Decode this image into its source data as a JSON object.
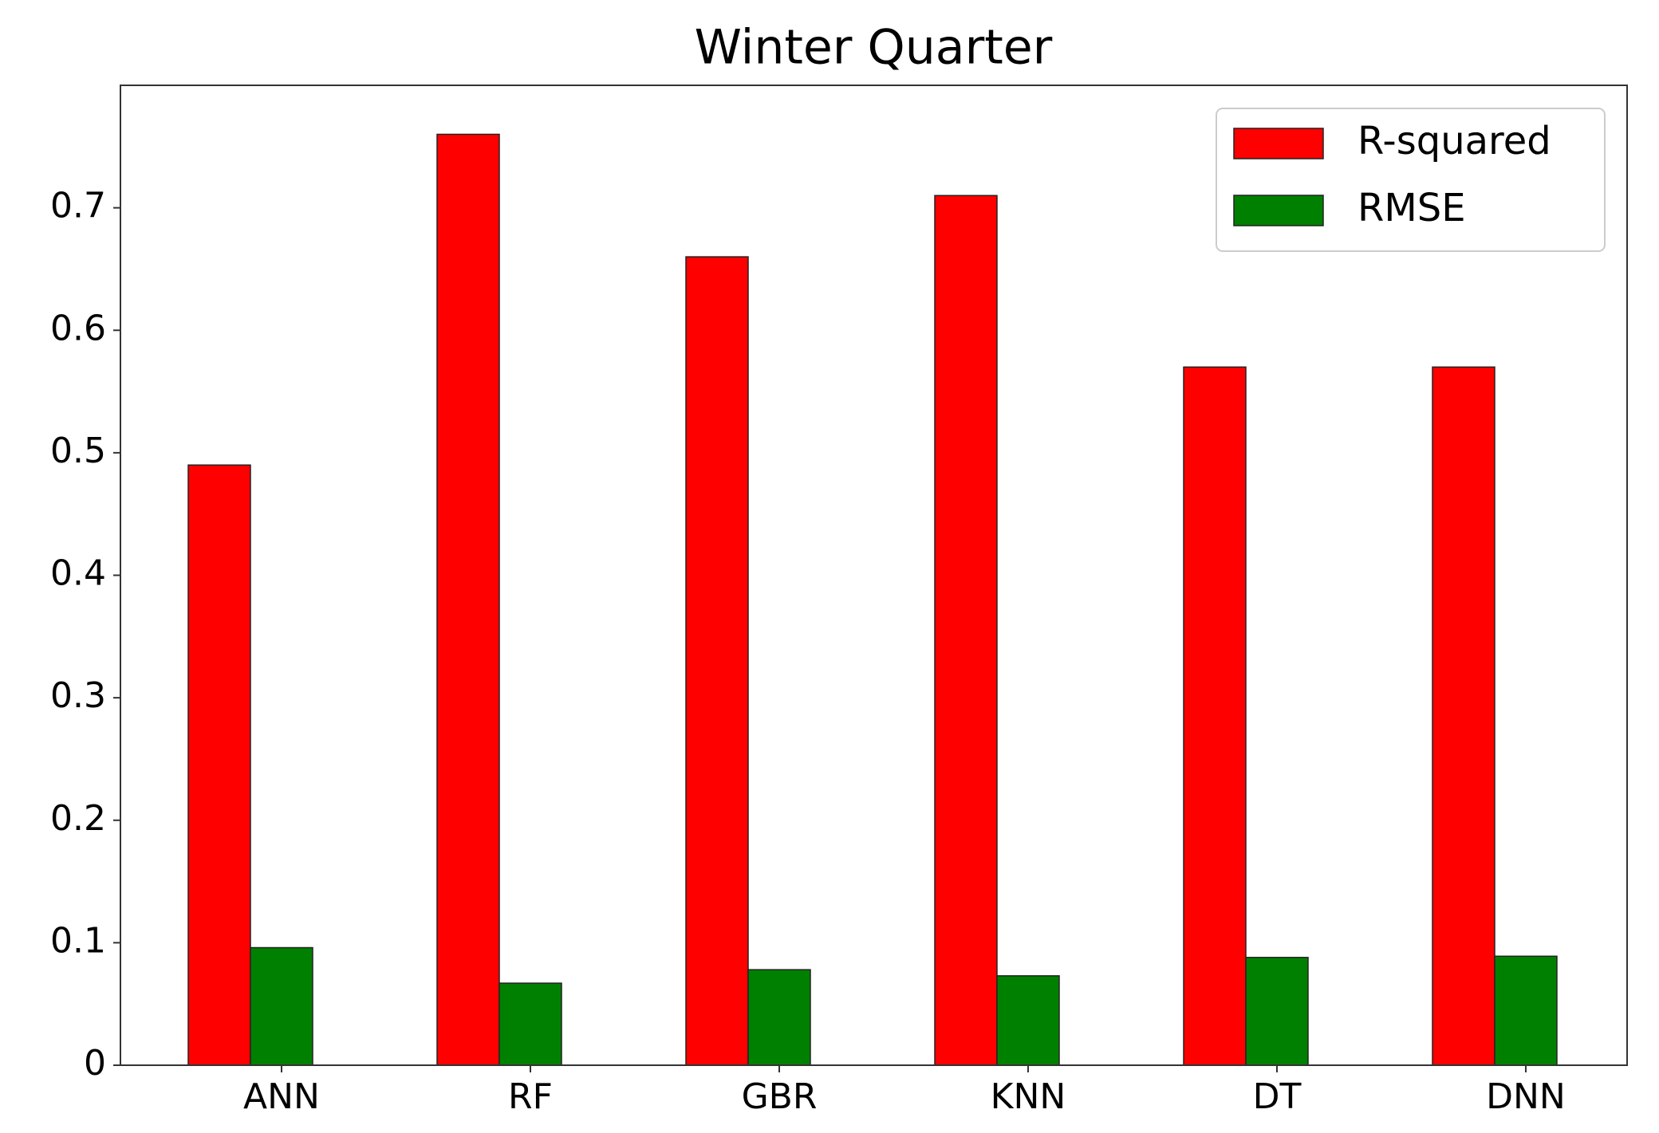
{
  "chart_data": {
    "type": "bar",
    "title": "Winter Quarter",
    "categories": [
      "ANN",
      "RF",
      "GBR",
      "KNN",
      "DT",
      "DNN"
    ],
    "series": [
      {
        "name": "R-squared",
        "color": "#ff0000",
        "values": [
          0.49,
          0.76,
          0.66,
          0.71,
          0.57,
          0.57
        ]
      },
      {
        "name": "RMSE",
        "color": "#008000",
        "values": [
          0.096,
          0.067,
          0.078,
          0.073,
          0.088,
          0.089
        ]
      }
    ],
    "ylim": [
      0,
      0.8
    ],
    "yticks": [
      0.0,
      0.1,
      0.2,
      0.3,
      0.4,
      0.5,
      0.6,
      0.7
    ],
    "legend": "upper right",
    "grid": false
  }
}
